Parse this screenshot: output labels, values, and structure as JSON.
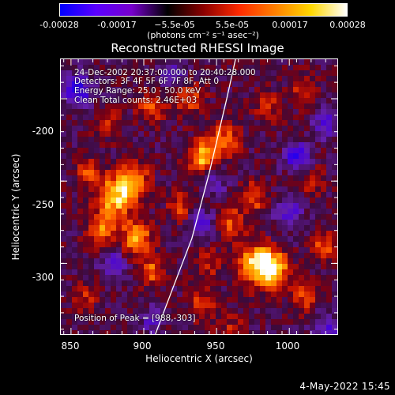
{
  "colorbar": {
    "ticks": [
      "-0.00028",
      "-0.00017",
      "−5.5e-05",
      "5.5e-05",
      "0.00017",
      "0.00028"
    ],
    "units": "(photons cm⁻² s⁻¹ asec⁻²)",
    "range": [
      -0.00028,
      0.00028
    ],
    "colors": [
      "#0000ff",
      "#5a00ff",
      "#7700cc",
      "#000000",
      "#8b0000",
      "#ff2a00",
      "#ff8000",
      "#ffd800",
      "#ffffff"
    ]
  },
  "info": {
    "line1": "24-Dec-2002 20:37:00.000 to 20:40:28.000",
    "line2": "Detectors: 3F 4F 5F 6F 7F 8F, Att 0",
    "line3": "Energy Range: 25.0 - 50.0 keV",
    "line4": "Clean     Total counts: 2.46E+03",
    "peak": "Position of Peak = [988,-303]"
  },
  "footer": {
    "date": "4-May-2022 15:45"
  },
  "chart_data": {
    "type": "heatmap",
    "title": "Reconstructed RHESSI Image",
    "xlabel": "Heliocentric X (arcsec)",
    "ylabel": "Heliocentric Y (arcsec)",
    "xlim": [
      843,
      1033
    ],
    "ylim": [
      -343,
      -176
    ],
    "xticks": [
      "850",
      "900",
      "950",
      "1000"
    ],
    "yticks": [
      "-200",
      "-250",
      "-300"
    ],
    "peak": [
      988,
      -303
    ],
    "limb_curve": {
      "x": [
        908,
        920,
        933,
        945,
        957,
        963
      ],
      "y": [
        -343,
        -315,
        -285,
        -245,
        -200,
        -176
      ]
    },
    "blobs": [
      {
        "x": 988,
        "y": -303,
        "v": 1.0,
        "r": 10
      },
      {
        "x": 975,
        "y": -300,
        "v": 0.75,
        "r": 12
      },
      {
        "x": 940,
        "y": -235,
        "v": 0.8,
        "r": 9
      },
      {
        "x": 955,
        "y": -225,
        "v": 0.55,
        "r": 10
      },
      {
        "x": 880,
        "y": -260,
        "v": 0.85,
        "r": 12
      },
      {
        "x": 893,
        "y": -250,
        "v": 0.7,
        "r": 10
      },
      {
        "x": 895,
        "y": -285,
        "v": 0.75,
        "r": 10
      },
      {
        "x": 905,
        "y": -305,
        "v": 0.55,
        "r": 8
      },
      {
        "x": 870,
        "y": -280,
        "v": 0.6,
        "r": 9
      },
      {
        "x": 1025,
        "y": -290,
        "v": 0.55,
        "r": 8
      },
      {
        "x": 1010,
        "y": -320,
        "v": 0.45,
        "r": 9
      },
      {
        "x": 1015,
        "y": -250,
        "v": 0.35,
        "r": 8
      },
      {
        "x": 975,
        "y": -260,
        "v": 0.5,
        "r": 9
      },
      {
        "x": 960,
        "y": -275,
        "v": 0.45,
        "r": 9
      },
      {
        "x": 930,
        "y": -200,
        "v": 0.5,
        "r": 10
      },
      {
        "x": 905,
        "y": -205,
        "v": 0.45,
        "r": 9
      },
      {
        "x": 875,
        "y": -215,
        "v": 0.45,
        "r": 8
      },
      {
        "x": 985,
        "y": -205,
        "v": 0.35,
        "r": 9
      },
      {
        "x": 1010,
        "y": -195,
        "v": 0.35,
        "r": 9
      },
      {
        "x": 860,
        "y": -320,
        "v": 0.35,
        "r": 8
      },
      {
        "x": 940,
        "y": -325,
        "v": 0.4,
        "r": 9
      },
      {
        "x": 945,
        "y": -300,
        "v": 0.35,
        "r": 8
      },
      {
        "x": 925,
        "y": -265,
        "v": 0.45,
        "r": 8
      },
      {
        "x": 862,
        "y": -245,
        "v": 0.45,
        "r": 8
      },
      {
        "x": 960,
        "y": -340,
        "v": 0.3,
        "r": 9
      },
      {
        "x": 855,
        "y": -195,
        "v": -0.7,
        "r": 9
      },
      {
        "x": 1005,
        "y": -235,
        "v": -0.7,
        "r": 8
      },
      {
        "x": 940,
        "y": -275,
        "v": -0.45,
        "r": 8
      },
      {
        "x": 1000,
        "y": -270,
        "v": -0.5,
        "r": 9
      },
      {
        "x": 880,
        "y": -300,
        "v": -0.4,
        "r": 9
      },
      {
        "x": 920,
        "y": -185,
        "v": -0.45,
        "r": 9
      },
      {
        "x": 950,
        "y": -250,
        "v": -0.3,
        "r": 8
      },
      {
        "x": 1025,
        "y": -340,
        "v": -0.45,
        "r": 9
      },
      {
        "x": 905,
        "y": -335,
        "v": -0.35,
        "r": 8
      },
      {
        "x": 1025,
        "y": -215,
        "v": -0.5,
        "r": 8
      }
    ]
  }
}
